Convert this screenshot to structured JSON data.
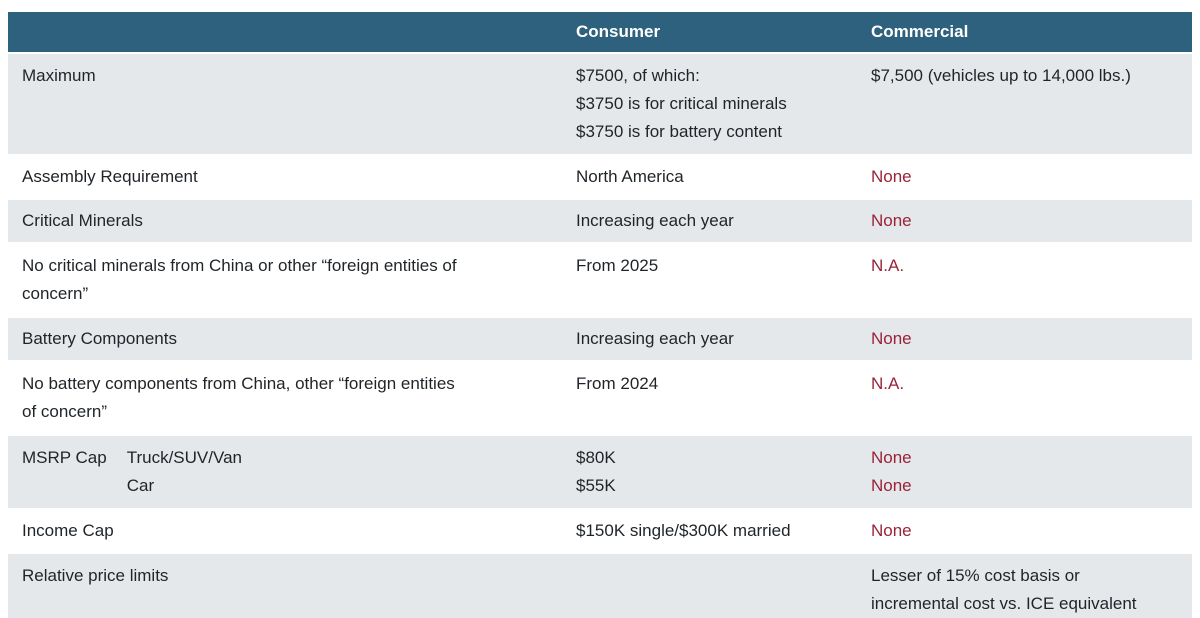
{
  "colors": {
    "header_bg": "#2E617D",
    "header_text": "#FFFFFF",
    "row_alt_bg": "#E5E8EA",
    "body_text": "#1F2428",
    "accent_red": "#9A2239"
  },
  "table": {
    "header": {
      "col1": "",
      "col2": "Consumer",
      "col3": "Commercial"
    },
    "rows": [
      {
        "label": "Maximum",
        "consumer_lines": [
          "$7500, of which:",
          "$3750 is for critical minerals",
          "$3750 is for battery content"
        ],
        "commercial": "$7,500 (vehicles up to 14,000 lbs.)"
      },
      {
        "label": "Assembly Requirement",
        "consumer": "North America",
        "commercial": "None"
      },
      {
        "label": "Critical Minerals",
        "consumer": "Increasing each year",
        "commercial": "None"
      },
      {
        "label_lines": [
          "No critical minerals from China or other “foreign entities of",
          "concern”"
        ],
        "consumer": "From 2025",
        "commercial": "N.A."
      },
      {
        "label": "Battery Components",
        "consumer": "Increasing each year",
        "commercial": "None"
      },
      {
        "label_lines": [
          "No battery components from China, other “foreign entities",
          "of concern”"
        ],
        "consumer": "From 2024",
        "commercial": "N.A."
      },
      {
        "label": "MSRP Cap",
        "sublabels": [
          "Truck/SUV/Van",
          "Car"
        ],
        "consumer_lines": [
          "$80K",
          "$55K"
        ],
        "commercial_lines": [
          "None",
          "None"
        ]
      },
      {
        "label": "Income Cap",
        "consumer": "$150K single/$300K married",
        "commercial": "None"
      },
      {
        "label": "Relative price limits",
        "consumer": "",
        "commercial_lines": [
          "Lesser of 15% cost basis or",
          "incremental cost vs. ICE equivalent"
        ]
      }
    ]
  }
}
